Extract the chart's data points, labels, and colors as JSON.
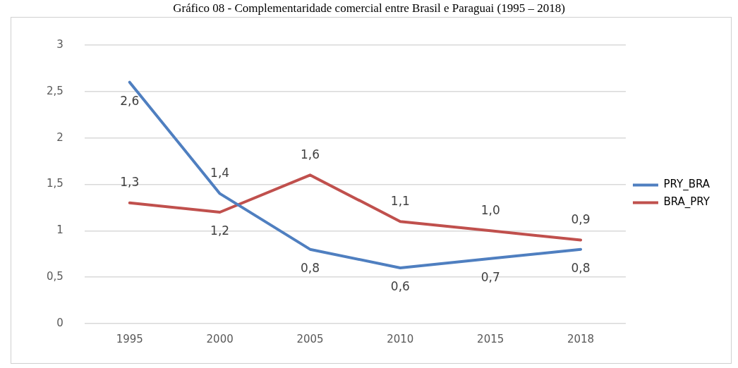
{
  "chart_data": {
    "type": "line",
    "title": "Gráfico 08 - Complementaridade comercial entre Brasil e Paraguai (1995 – 2018)",
    "categories": [
      "1995",
      "2000",
      "2005",
      "2010",
      "2015",
      "2018"
    ],
    "series": [
      {
        "name": "PRY_BRA",
        "color": "#4f7fc0",
        "values": [
          2.6,
          1.4,
          0.8,
          0.6,
          0.7,
          0.8
        ],
        "value_labels": [
          "2,6",
          "1,4",
          "0,8",
          "0,6",
          "0,7",
          "0,8"
        ]
      },
      {
        "name": "BRA_PRY",
        "color": "#c0504d",
        "values": [
          1.3,
          1.2,
          1.6,
          1.1,
          1.0,
          0.9
        ],
        "value_labels": [
          "1,3",
          "1,2",
          "1,6",
          "1,1",
          "1,0",
          "0,9"
        ]
      }
    ],
    "ylim": [
      0,
      3
    ],
    "yticks": [
      {
        "value": 0,
        "label": "0"
      },
      {
        "value": 0.5,
        "label": "0,5"
      },
      {
        "value": 1,
        "label": "1"
      },
      {
        "value": 1.5,
        "label": "1,5"
      },
      {
        "value": 2,
        "label": "2"
      },
      {
        "value": 2.5,
        "label": "2,5"
      },
      {
        "value": 3,
        "label": "3"
      }
    ],
    "grid": "y",
    "legend": "right",
    "marker": "none",
    "line_style": "solid"
  }
}
